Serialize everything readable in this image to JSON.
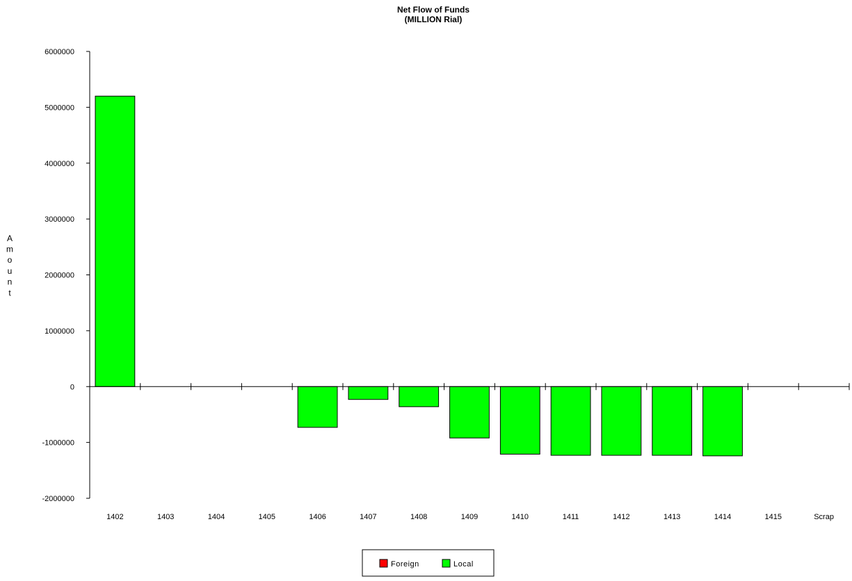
{
  "chart_data": {
    "type": "bar",
    "title": "Net Flow of Funds",
    "subtitle": "(MILLION Rial)",
    "ylabel": "Amount",
    "xlabel": "",
    "categories": [
      "1402",
      "1403",
      "1404",
      "1405",
      "1406",
      "1407",
      "1408",
      "1409",
      "1410",
      "1411",
      "1412",
      "1413",
      "1414",
      "1415",
      "Scrap"
    ],
    "ylim": [
      -2000000,
      6000000
    ],
    "yticks": [
      6000000,
      5000000,
      4000000,
      3000000,
      2000000,
      1000000,
      0,
      -1000000,
      -2000000
    ],
    "ytick_labels": [
      "6000000",
      "5000000",
      "4000000",
      "3000000",
      "2000000",
      "1000000",
      "0",
      "-1000000",
      "-2000000"
    ],
    "grid": false,
    "legend_position": "bottom-center",
    "series": [
      {
        "name": "Foreign",
        "color": "#ff0000",
        "values": [
          0,
          0,
          0,
          0,
          0,
          0,
          0,
          0,
          0,
          0,
          0,
          0,
          0,
          0,
          0
        ]
      },
      {
        "name": "Local",
        "color": "#00ff00",
        "values": [
          5200000,
          0,
          0,
          0,
          -730000,
          -230000,
          -360000,
          -920000,
          -1210000,
          -1230000,
          -1230000,
          -1230000,
          -1240000,
          0,
          0
        ]
      }
    ]
  }
}
